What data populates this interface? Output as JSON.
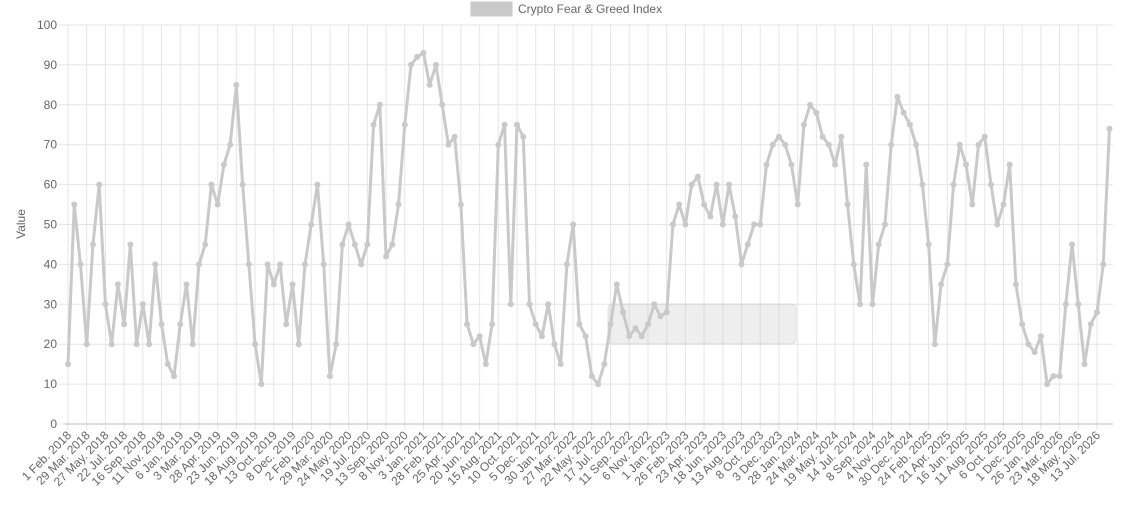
{
  "chart_data": {
    "type": "line",
    "legend": "top",
    "grid": true,
    "y_label": "Value",
    "categories": [
      "1 Feb. 2018",
      null,
      null,
      "29 Mar. 2018",
      null,
      null,
      "27 May. 2018",
      null,
      null,
      "22 Jul. 2018",
      null,
      null,
      "16 Sep. 2018",
      null,
      null,
      "11 Nov. 2018",
      null,
      null,
      "6 Jan. 2019",
      null,
      null,
      "3 Mar. 2019",
      null,
      null,
      "28 Apr. 2019",
      null,
      null,
      "23 Jun. 2019",
      null,
      null,
      "18 Aug. 2019",
      null,
      null,
      "13 Oct. 2019",
      null,
      null,
      "8 Dec. 2019",
      null,
      null,
      "2 Feb. 2020",
      null,
      null,
      "29 Mar. 2020",
      null,
      null,
      "24 May. 2020",
      null,
      null,
      "19 Jul. 2020",
      null,
      null,
      "13 Sep. 2020",
      null,
      null,
      "8 Nov. 2020",
      null,
      null,
      "3 Jan. 2021",
      null,
      null,
      "28 Feb. 2021",
      null,
      null,
      "25 Apr. 2021",
      null,
      null,
      "20 Jun. 2021",
      null,
      null,
      "15 Aug. 2021",
      null,
      null,
      "10 Oct. 2021",
      null,
      null,
      "5 Dec. 2021",
      null,
      null,
      "30 Jan. 2022",
      null,
      null,
      "27 Mar. 2022",
      null,
      null,
      "22 May. 2022",
      null,
      null,
      "17 Jul. 2022",
      null,
      null,
      "11 Sep. 2022",
      null,
      null,
      "6 Nov. 2022",
      null,
      null,
      "1 Jan. 2023",
      null,
      null,
      "26 Feb. 2023",
      null,
      null,
      "23 Apr. 2023",
      null,
      null,
      "18 Jun. 2023",
      null,
      null,
      "13 Aug. 2023",
      null,
      null,
      "8 Oct. 2023",
      null,
      null,
      "3 Dec. 2023",
      null,
      null,
      "28 Jan. 2024",
      null,
      null,
      "24 Mar. 2024",
      null,
      null,
      "19 May. 2024",
      null,
      null,
      "14 Jul. 2024",
      null,
      null,
      "8 Sep. 2024",
      null,
      null,
      "4 Nov. 2024",
      null,
      null,
      "30 Dec. 2024",
      null,
      null,
      "24 Feb. 2025",
      null,
      null,
      "21 Apr. 2025",
      null,
      null,
      "16 Jun. 2025",
      null,
      null,
      "11 Aug. 2025",
      null,
      null,
      "6 Oct. 2025",
      null,
      null,
      "1 Dec. 2025",
      null,
      null,
      "26 Jan. 2026",
      null,
      null,
      "23 Mar. 2026",
      null,
      null,
      "18 May. 2026",
      null,
      null,
      "13 Jul. 2026",
      null,
      null
    ],
    "series": [
      {
        "name": "Crypto Fear & Greed Index",
        "color": "#c9c9c9",
        "values": [
          15,
          55,
          40,
          20,
          45,
          60,
          30,
          20,
          35,
          25,
          45,
          20,
          30,
          20,
          40,
          25,
          15,
          12,
          25,
          35,
          20,
          40,
          45,
          60,
          55,
          65,
          70,
          85,
          60,
          40,
          20,
          10,
          40,
          35,
          40,
          25,
          35,
          20,
          40,
          50,
          60,
          40,
          12,
          20,
          45,
          50,
          45,
          40,
          45,
          75,
          80,
          42,
          45,
          55,
          75,
          90,
          92,
          93,
          85,
          90,
          80,
          70,
          72,
          55,
          25,
          20,
          22,
          15,
          25,
          70,
          75,
          30,
          75,
          72,
          30,
          25,
          22,
          30,
          20,
          15,
          40,
          50,
          25,
          22,
          12,
          10,
          15,
          25,
          35,
          28,
          22,
          24,
          22,
          25,
          30,
          27,
          28,
          50,
          55,
          50,
          60,
          62,
          55,
          52,
          60,
          50,
          60,
          52,
          40,
          45,
          50,
          50,
          65,
          70,
          72,
          70,
          65,
          55,
          75,
          80,
          78,
          72,
          70,
          65,
          72,
          55,
          40,
          30,
          65,
          30,
          45,
          50,
          70,
          82,
          78,
          75,
          70,
          60,
          45,
          20,
          35,
          40,
          60,
          70,
          65,
          55,
          70,
          72,
          60,
          50,
          55,
          65,
          35,
          25,
          20,
          18,
          22,
          10,
          12,
          12,
          30,
          45,
          30,
          15,
          25,
          28,
          40,
          74
        ]
      }
    ],
    "ylim": [
      0,
      100
    ],
    "yticks": [
      0,
      10,
      20,
      30,
      40,
      50,
      60,
      70,
      80,
      90,
      100
    ]
  }
}
